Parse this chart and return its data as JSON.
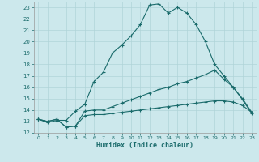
{
  "xlabel": "Humidex (Indice chaleur)",
  "ylabel": "",
  "background_color": "#cce8ec",
  "grid_color": "#b0d4d8",
  "line_color": "#1a6b6b",
  "xlim": [
    -0.5,
    23.5
  ],
  "ylim": [
    12,
    23.5
  ],
  "xticks": [
    0,
    1,
    2,
    3,
    4,
    5,
    6,
    7,
    8,
    9,
    10,
    11,
    12,
    13,
    14,
    15,
    16,
    17,
    18,
    19,
    20,
    21,
    22,
    23
  ],
  "yticks": [
    12,
    13,
    14,
    15,
    16,
    17,
    18,
    19,
    20,
    21,
    22,
    23
  ],
  "line1_x": [
    0,
    1,
    2,
    3,
    4,
    5,
    6,
    7,
    8,
    9,
    10,
    11,
    12,
    13,
    14,
    15,
    16,
    17,
    18,
    19,
    20,
    21,
    22,
    23
  ],
  "line1_y": [
    13.2,
    12.9,
    13.1,
    13.1,
    13.9,
    14.5,
    16.5,
    17.3,
    19.0,
    19.7,
    20.5,
    21.5,
    23.2,
    23.3,
    22.5,
    23.0,
    22.5,
    21.5,
    20.0,
    18.0,
    17.0,
    16.0,
    14.9,
    13.7
  ],
  "line2_x": [
    0,
    1,
    2,
    3,
    4,
    5,
    6,
    7,
    8,
    9,
    10,
    11,
    12,
    13,
    14,
    15,
    16,
    17,
    18,
    19,
    20,
    21,
    22,
    23
  ],
  "line2_y": [
    13.2,
    13.0,
    13.2,
    12.5,
    12.6,
    13.9,
    14.0,
    14.0,
    14.3,
    14.6,
    14.9,
    15.2,
    15.5,
    15.8,
    16.0,
    16.3,
    16.5,
    16.8,
    17.1,
    17.5,
    16.7,
    16.0,
    15.0,
    13.8
  ],
  "line3_x": [
    0,
    1,
    2,
    3,
    4,
    5,
    6,
    7,
    8,
    9,
    10,
    11,
    12,
    13,
    14,
    15,
    16,
    17,
    18,
    19,
    20,
    21,
    22,
    23
  ],
  "line3_y": [
    13.2,
    13.0,
    13.2,
    12.5,
    12.6,
    13.5,
    13.6,
    13.6,
    13.7,
    13.8,
    13.9,
    14.0,
    14.1,
    14.2,
    14.3,
    14.4,
    14.5,
    14.6,
    14.7,
    14.8,
    14.8,
    14.7,
    14.4,
    13.8
  ]
}
